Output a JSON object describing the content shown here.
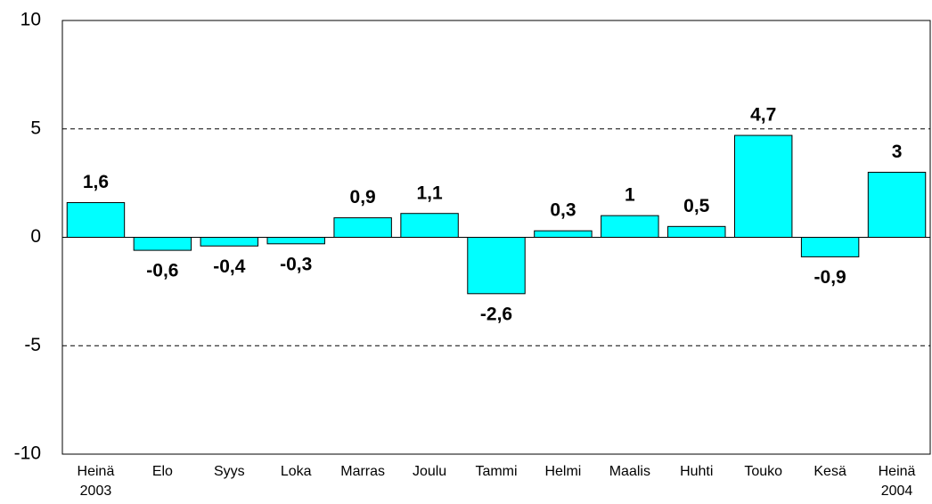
{
  "chart_data": {
    "type": "bar",
    "categories": [
      "Heinä 2003",
      "Elo",
      "Syys",
      "Loka",
      "Marras",
      "Joulu",
      "Tammi",
      "Helmi",
      "Maalis",
      "Huhti",
      "Touko",
      "Kesä",
      "Heinä 2004"
    ],
    "values": [
      1.6,
      -0.6,
      -0.4,
      -0.3,
      0.9,
      1.1,
      -2.6,
      0.3,
      1,
      0.5,
      4.7,
      -0.9,
      3
    ],
    "value_labels": [
      "1,6",
      "-0,6",
      "-0,4",
      "-0,3",
      "0,9",
      "1,1",
      "-2,6",
      "0,3",
      "1",
      "0,5",
      "4,7",
      "-0,9",
      "3"
    ],
    "color": "#00ffff",
    "ylim": [
      -10,
      10
    ],
    "yticks": [
      -10,
      -5,
      0,
      5,
      10
    ],
    "grid": true
  }
}
